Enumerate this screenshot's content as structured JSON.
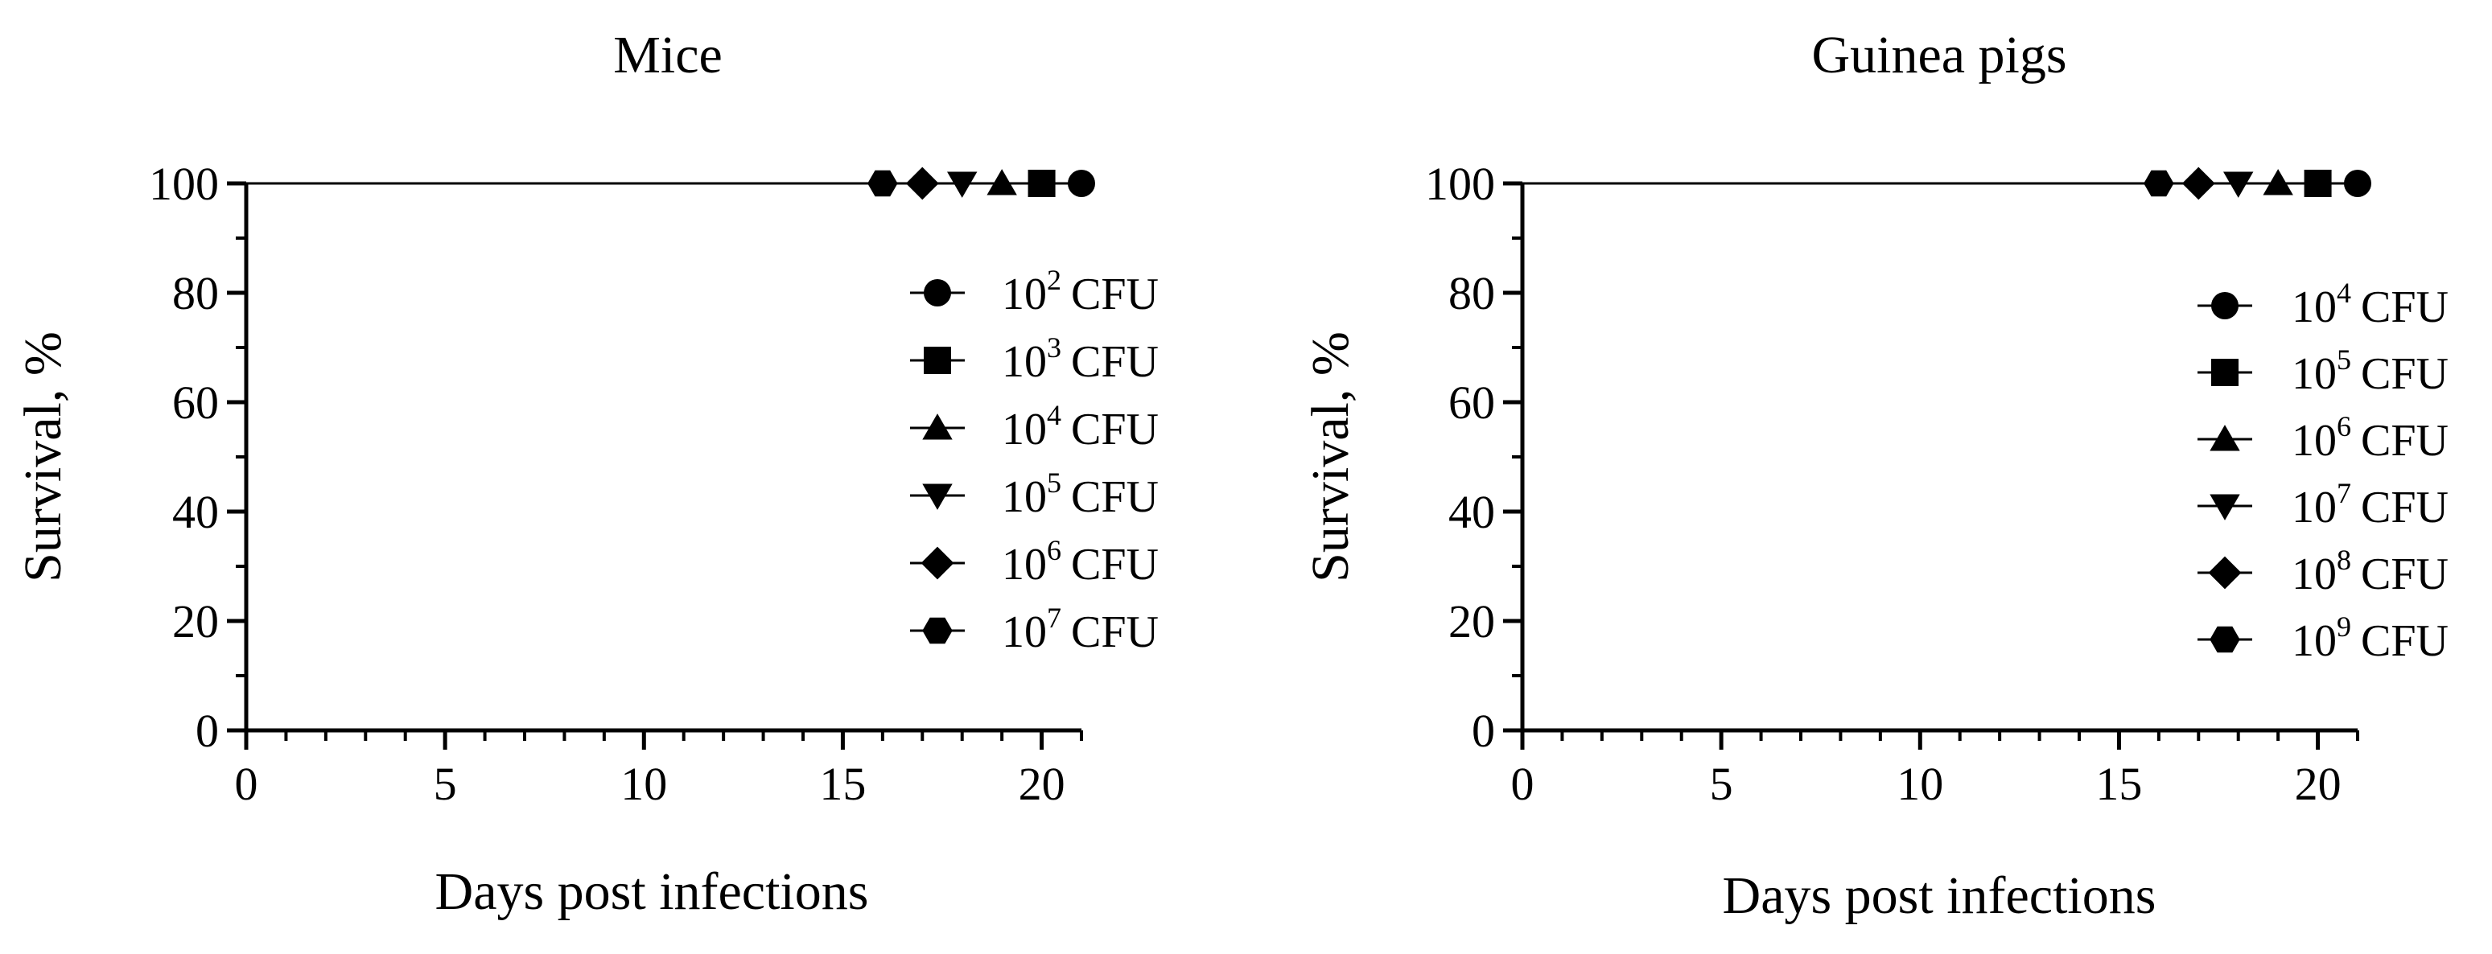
{
  "chart_data": [
    {
      "type": "line",
      "title": "Mice",
      "xlabel": "Days post infections",
      "ylabel": "Survival, %",
      "xlim": [
        0,
        21
      ],
      "ylim": [
        0,
        100
      ],
      "xticks": [
        0,
        5,
        10,
        15,
        20
      ],
      "yticks": [
        0,
        20,
        40,
        60,
        80,
        100
      ],
      "x_tick_labels": [
        "0",
        "5",
        "10",
        "15",
        "20"
      ],
      "y_tick_labels": [
        "0",
        "20",
        "40",
        "60",
        "80",
        "100"
      ],
      "legend_position": "right",
      "series": [
        {
          "name": "10² CFU",
          "base": "10",
          "exp": "2",
          "unit": "CFU",
          "marker": "circle",
          "x": [
            0,
            21
          ],
          "y": [
            100,
            100
          ],
          "marker_x": 21
        },
        {
          "name": "10³ CFU",
          "base": "10",
          "exp": "3",
          "unit": "CFU",
          "marker": "square",
          "x": [
            0,
            20
          ],
          "y": [
            100,
            100
          ],
          "marker_x": 20
        },
        {
          "name": "10⁴ CFU",
          "base": "10",
          "exp": "4",
          "unit": "CFU",
          "marker": "triangle-up",
          "x": [
            0,
            19
          ],
          "y": [
            100,
            100
          ],
          "marker_x": 19
        },
        {
          "name": "10⁵ CFU",
          "base": "10",
          "exp": "5",
          "unit": "CFU",
          "marker": "triangle-down",
          "x": [
            0,
            18
          ],
          "y": [
            100,
            100
          ],
          "marker_x": 18
        },
        {
          "name": "10⁶ CFU",
          "base": "10",
          "exp": "6",
          "unit": "CFU",
          "marker": "diamond",
          "x": [
            0,
            17
          ],
          "y": [
            100,
            100
          ],
          "marker_x": 17
        },
        {
          "name": "10⁷ CFU",
          "base": "10",
          "exp": "7",
          "unit": "CFU",
          "marker": "hexagon",
          "x": [
            0,
            16
          ],
          "y": [
            100,
            100
          ],
          "marker_x": 16
        }
      ]
    },
    {
      "type": "line",
      "title": "Guinea pigs",
      "xlabel": "Days post infections",
      "ylabel": "Survival, %",
      "xlim": [
        0,
        21
      ],
      "ylim": [
        0,
        100
      ],
      "xticks": [
        0,
        5,
        10,
        15,
        20
      ],
      "yticks": [
        0,
        20,
        40,
        60,
        80,
        100
      ],
      "x_tick_labels": [
        "0",
        "5",
        "10",
        "15",
        "20"
      ],
      "y_tick_labels": [
        "0",
        "20",
        "40",
        "60",
        "80",
        "100"
      ],
      "legend_position": "right",
      "series": [
        {
          "name": "10⁴ CFU",
          "base": "10",
          "exp": "4",
          "unit": "CFU",
          "marker": "circle",
          "x": [
            0,
            21
          ],
          "y": [
            100,
            100
          ],
          "marker_x": 21
        },
        {
          "name": "10⁵ CFU",
          "base": "10",
          "exp": "5",
          "unit": "CFU",
          "marker": "square",
          "x": [
            0,
            20
          ],
          "y": [
            100,
            100
          ],
          "marker_x": 20
        },
        {
          "name": "10⁶ CFU",
          "base": "10",
          "exp": "6",
          "unit": "CFU",
          "marker": "triangle-up",
          "x": [
            0,
            19
          ],
          "y": [
            100,
            100
          ],
          "marker_x": 19
        },
        {
          "name": "10⁷ CFU",
          "base": "10",
          "exp": "7",
          "unit": "CFU",
          "marker": "triangle-down",
          "x": [
            0,
            18
          ],
          "y": [
            100,
            100
          ],
          "marker_x": 18
        },
        {
          "name": "10⁸ CFU",
          "base": "10",
          "exp": "8",
          "unit": "CFU",
          "marker": "diamond",
          "x": [
            0,
            17
          ],
          "y": [
            100,
            100
          ],
          "marker_x": 17
        },
        {
          "name": "10⁹ CFU",
          "base": "10",
          "exp": "9",
          "unit": "CFU",
          "marker": "hexagon",
          "x": [
            0,
            16
          ],
          "y": [
            100,
            100
          ],
          "marker_x": 16
        }
      ]
    }
  ]
}
